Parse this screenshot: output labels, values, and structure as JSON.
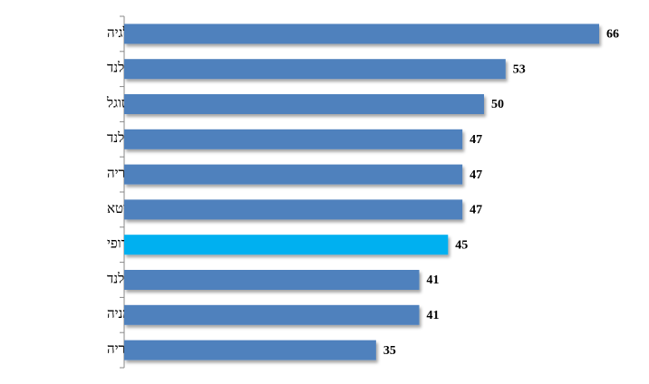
{
  "chart_data": {
    "type": "bar",
    "orientation": "horizontal",
    "categories": [
      "בלגיה",
      "אירלנד",
      "פורטוגל",
      "פינלנד",
      "אוסטריה",
      "ליטא",
      "האיחוד האירופי",
      "הולנד",
      "גרמניה",
      "הונגריה"
    ],
    "values": [
      66,
      53,
      50,
      47,
      47,
      47,
      45,
      41,
      41,
      35
    ],
    "colors": [
      "#4f81bd",
      "#4f81bd",
      "#4f81bd",
      "#4f81bd",
      "#4f81bd",
      "#4f81bd",
      "#00b0f0",
      "#4f81bd",
      "#4f81bd",
      "#4f81bd"
    ]
  }
}
